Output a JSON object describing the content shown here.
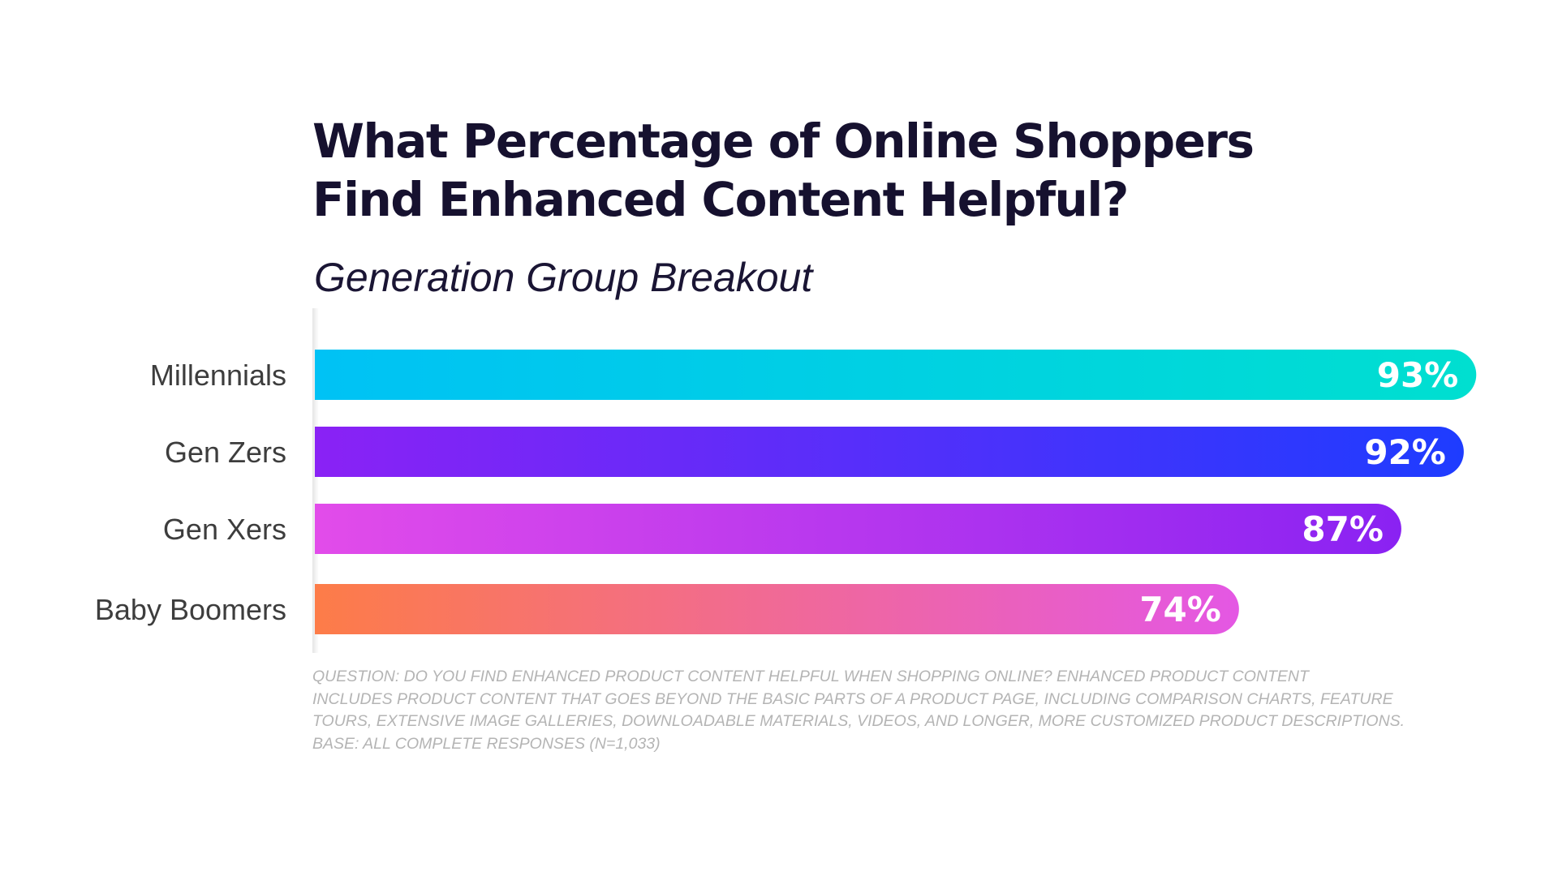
{
  "chart_data": {
    "type": "bar",
    "orientation": "horizontal",
    "title": [
      "What Percentage of Online Shoppers",
      "Find Enhanced Content Helpful?"
    ],
    "subtitle": "Generation Group Breakout",
    "categories": [
      "Millennials",
      "Gen Zers",
      "Gen Xers",
      "Baby Boomers"
    ],
    "values": [
      93,
      92,
      87,
      74
    ],
    "value_labels": [
      "93%",
      "92%",
      "87%",
      "74%"
    ],
    "unit": "%",
    "xlim": [
      0,
      100
    ],
    "grid": false,
    "legend": "none",
    "gradients": [
      [
        "#00c2f5",
        "#00dfd0"
      ],
      [
        "#8a22f5",
        "#1e3cff"
      ],
      [
        "#e24cea",
        "#8a22f2"
      ],
      [
        "#fd7c48",
        "#e457e4"
      ]
    ],
    "footnote": [
      "Question: Do you find enhanced product content helpful when shopping online? Enhanced product content",
      "includes product content that goes beyond the basic parts of a product page, including comparison charts, feature",
      "tours, extensive image galleries, downloadable materials, videos, and longer, more customized product descriptions.",
      "Base: All complete responses (N=1,033)"
    ]
  }
}
